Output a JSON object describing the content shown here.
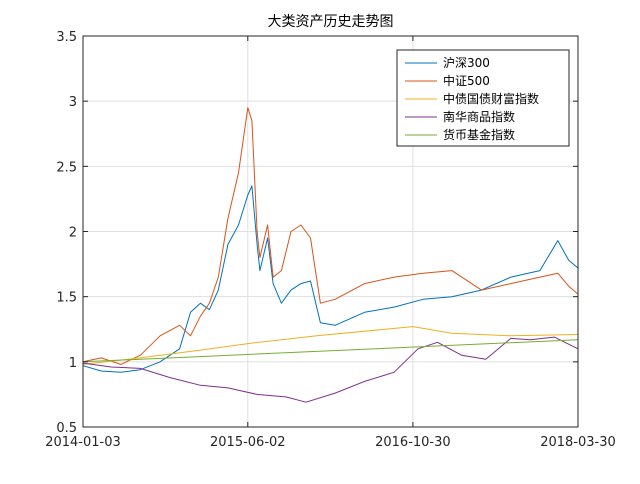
{
  "chart_data": {
    "type": "line",
    "title": "大类资产历史走势图",
    "xlabel": "",
    "ylabel": "",
    "x_ticks": [
      "2014-01-03",
      "2015-06-02",
      "2016-10-30",
      "2018-03-30"
    ],
    "y_ticks": [
      "0.5",
      "1",
      "1.5",
      "2",
      "2.5",
      "3",
      "3.5"
    ],
    "ylim": [
      0.5,
      3.5
    ],
    "xlim": [
      "2014-01-03",
      "2018-03-30"
    ],
    "grid": true,
    "legend_position": "top-right",
    "series": [
      {
        "name": "沪深300",
        "color": "#0072BD",
        "x": [
          "2014-01-03",
          "2014-03-01",
          "2014-05-01",
          "2014-07-01",
          "2014-09-01",
          "2014-11-01",
          "2014-12-05",
          "2015-01-05",
          "2015-02-02",
          "2015-03-02",
          "2015-04-01",
          "2015-05-04",
          "2015-06-02",
          "2015-06-15",
          "2015-07-01",
          "2015-07-10",
          "2015-08-03",
          "2015-08-20",
          "2015-09-15",
          "2015-10-15",
          "2015-11-15",
          "2015-12-15",
          "2016-01-15",
          "2016-03-01",
          "2016-06-01",
          "2016-09-01",
          "2016-12-01",
          "2017-03-01",
          "2017-06-01",
          "2017-09-01",
          "2017-12-01",
          "2018-01-26",
          "2018-03-01",
          "2018-03-30"
        ],
        "values": [
          0.97,
          0.93,
          0.92,
          0.94,
          1.0,
          1.1,
          1.38,
          1.45,
          1.4,
          1.55,
          1.9,
          2.05,
          2.28,
          2.35,
          1.9,
          1.7,
          1.95,
          1.6,
          1.45,
          1.55,
          1.6,
          1.62,
          1.3,
          1.28,
          1.38,
          1.42,
          1.48,
          1.5,
          1.55,
          1.65,
          1.7,
          1.93,
          1.78,
          1.72
        ]
      },
      {
        "name": "中证500",
        "color": "#D95319",
        "x": [
          "2014-01-03",
          "2014-03-01",
          "2014-05-01",
          "2014-07-01",
          "2014-09-01",
          "2014-11-01",
          "2014-12-05",
          "2015-01-05",
          "2015-02-02",
          "2015-03-02",
          "2015-04-01",
          "2015-05-04",
          "2015-06-02",
          "2015-06-15",
          "2015-07-01",
          "2015-07-10",
          "2015-08-03",
          "2015-08-20",
          "2015-09-15",
          "2015-10-15",
          "2015-11-15",
          "2015-12-15",
          "2016-01-15",
          "2016-03-01",
          "2016-06-01",
          "2016-09-01",
          "2016-12-01",
          "2017-03-01",
          "2017-06-01",
          "2017-09-01",
          "2017-12-01",
          "2018-01-26",
          "2018-03-01",
          "2018-03-30"
        ],
        "values": [
          1.0,
          1.03,
          0.98,
          1.05,
          1.2,
          1.28,
          1.2,
          1.35,
          1.45,
          1.65,
          2.1,
          2.45,
          2.95,
          2.85,
          2.0,
          1.8,
          2.05,
          1.65,
          1.7,
          2.0,
          2.05,
          1.95,
          1.45,
          1.48,
          1.6,
          1.65,
          1.68,
          1.7,
          1.55,
          1.6,
          1.65,
          1.68,
          1.58,
          1.52
        ]
      },
      {
        "name": "中债国债财富指数",
        "color": "#EDB120",
        "x": [
          "2014-01-03",
          "2014-07-01",
          "2015-01-05",
          "2015-06-02",
          "2016-01-04",
          "2016-10-30",
          "2017-03-01",
          "2017-09-01",
          "2018-03-30"
        ],
        "values": [
          0.98,
          1.03,
          1.09,
          1.14,
          1.2,
          1.27,
          1.22,
          1.2,
          1.21
        ]
      },
      {
        "name": "南华商品指数",
        "color": "#7E2F8E",
        "x": [
          "2014-01-03",
          "2014-04-01",
          "2014-07-01",
          "2014-10-01",
          "2015-01-05",
          "2015-04-01",
          "2015-07-01",
          "2015-10-01",
          "2015-12-01",
          "2016-03-01",
          "2016-06-01",
          "2016-09-01",
          "2016-11-15",
          "2017-01-15",
          "2017-04-01",
          "2017-06-15",
          "2017-09-01",
          "2017-11-01",
          "2018-01-15",
          "2018-03-30"
        ],
        "values": [
          0.99,
          0.96,
          0.95,
          0.88,
          0.82,
          0.8,
          0.75,
          0.73,
          0.69,
          0.76,
          0.85,
          0.92,
          1.1,
          1.15,
          1.05,
          1.02,
          1.18,
          1.17,
          1.19,
          1.1
        ]
      },
      {
        "name": "货币基金指数",
        "color": "#77AC30",
        "x": [
          "2014-01-03",
          "2018-03-30"
        ],
        "values": [
          1.0,
          1.17
        ]
      }
    ]
  }
}
